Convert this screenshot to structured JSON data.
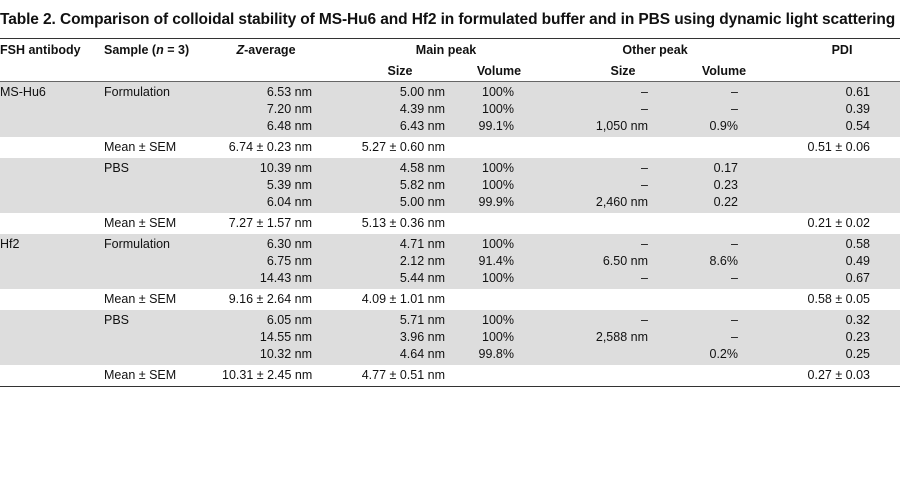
{
  "caption": "Table 2. Comparison of colloidal stability of MS-Hu6 and Hf2 in formulated buffer and in PBS using dynamic light scattering",
  "headers": {
    "antibody": "FSH antibody",
    "sample": "Sample (n = 3)",
    "zavg": "Z-average",
    "main_peak": "Main peak",
    "other_peak": "Other peak",
    "pdi": "PDI",
    "size": "Size",
    "volume": "Volume",
    "other_size": "Size",
    "other_volume": "Volume"
  },
  "groups": [
    {
      "antibody": "MS-Hu6",
      "sample": "Formulation",
      "shaded": true,
      "rows": [
        [
          "6.53 nm",
          "5.00 nm",
          "100%",
          "–",
          "–",
          "0.61"
        ],
        [
          "7.20 nm",
          "4.39 nm",
          "100%",
          "–",
          "–",
          "0.39"
        ],
        [
          "6.48 nm",
          "6.43 nm",
          "99.1%",
          "1,050 nm",
          "0.9%",
          "0.54"
        ]
      ],
      "mean": {
        "label": "Mean ± SEM",
        "zavg": "6.74 ± 0.23 nm",
        "size": "5.27 ± 0.60 nm",
        "pdi": "0.51 ± 0.06"
      }
    },
    {
      "antibody": "",
      "sample": "PBS",
      "shaded": true,
      "rows": [
        [
          "10.39 nm",
          "4.58 nm",
          "100%",
          "–",
          "0.17",
          ""
        ],
        [
          "5.39 nm",
          "5.82 nm",
          "100%",
          "–",
          "0.23",
          ""
        ],
        [
          "6.04 nm",
          "5.00 nm",
          "99.9%",
          "2,460 nm",
          "0.22",
          ""
        ]
      ],
      "mean": {
        "label": "Mean ± SEM",
        "zavg": "7.27 ± 1.57 nm",
        "size": "5.13 ± 0.36 nm",
        "pdi": "0.21 ± 0.02"
      }
    },
    {
      "antibody": "Hf2",
      "sample": "Formulation",
      "shaded": true,
      "rows": [
        [
          "6.30 nm",
          "4.71 nm",
          "100%",
          "–",
          "–",
          "0.58"
        ],
        [
          "6.75 nm",
          "2.12 nm",
          "91.4%",
          "6.50 nm",
          "8.6%",
          "0.49"
        ],
        [
          "14.43 nm",
          "5.44 nm",
          "100%",
          "–",
          "–",
          "0.67"
        ]
      ],
      "mean": {
        "label": "Mean ± SEM",
        "zavg": "9.16 ± 2.64 nm",
        "size": "4.09 ± 1.01 nm",
        "pdi": "0.58 ± 0.05"
      }
    },
    {
      "antibody": "",
      "sample": "PBS",
      "shaded": true,
      "rows": [
        [
          "6.05 nm",
          "5.71 nm",
          "100%",
          "–",
          "–",
          "0.32"
        ],
        [
          "14.55 nm",
          "3.96 nm",
          "100%",
          "2,588 nm",
          "–",
          "0.23"
        ],
        [
          "10.32 nm",
          "4.64 nm",
          "99.8%",
          "",
          "0.2%",
          "0.25"
        ]
      ],
      "mean": {
        "label": "Mean ± SEM",
        "zavg": "10.31 ± 2.45 nm",
        "size": "4.77 ± 0.51 nm",
        "pdi": "0.27 ± 0.03"
      }
    }
  ]
}
